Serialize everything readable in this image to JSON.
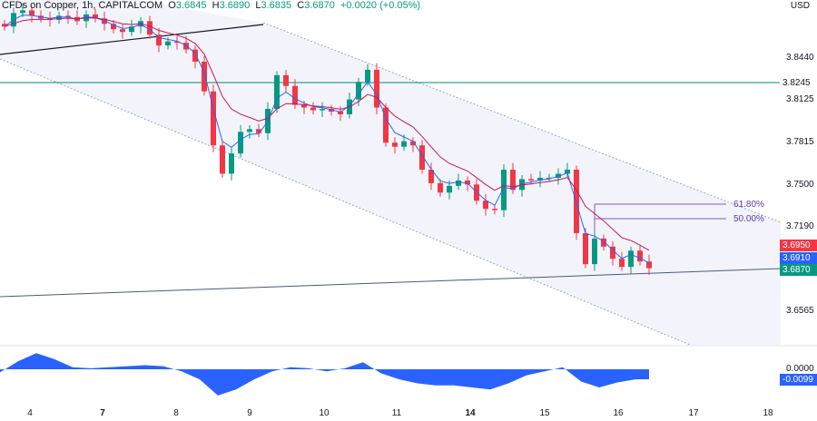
{
  "header": {
    "symbol": "CFDs on Copper",
    "interval": "1h",
    "exchange": "CAPITALCOM",
    "open_label": "O",
    "open": "3.6845",
    "high_label": "H",
    "high": "3.6890",
    "low_label": "L",
    "low": "3.6835",
    "close_label": "C",
    "close": "3.6870",
    "change": "+0.0020 (+0.05%)"
  },
  "currency": "USD",
  "colors": {
    "up": "#089981",
    "down": "#f23645",
    "ma_fast": "#2962ff",
    "ma_slow": "#c2185b",
    "channel": "#f3f4fb",
    "horizontal": "#00897b",
    "oscillator": "#2962ff"
  },
  "price_axis": {
    "ticks": [
      "3.8440",
      "3.8125",
      "3.7815",
      "3.7500",
      "3.7190",
      "3.6565"
    ],
    "tags": [
      {
        "value": "3.8245",
        "color": "#ffffff",
        "text": "#131722"
      },
      {
        "value": "3.6950",
        "color": "#f23645"
      },
      {
        "value": "3.6910",
        "color": "#2962ff"
      },
      {
        "value": "3.6870",
        "color": "#089981"
      }
    ]
  },
  "fib_levels": [
    {
      "label": "61.80%"
    },
    {
      "label": "50.00%"
    }
  ],
  "oscillator_axis": {
    "zero": "0.0000",
    "current": "-0.0099"
  },
  "time_axis": {
    "labels": [
      {
        "t": "4",
        "bold": false
      },
      {
        "t": "7",
        "bold": true
      },
      {
        "t": "8",
        "bold": false
      },
      {
        "t": "9",
        "bold": false
      },
      {
        "t": "10",
        "bold": false
      },
      {
        "t": "11",
        "bold": false
      },
      {
        "t": "14",
        "bold": true
      },
      {
        "t": "15",
        "bold": false
      },
      {
        "t": "16",
        "bold": false
      },
      {
        "t": "17",
        "bold": false
      },
      {
        "t": "18",
        "bold": false
      }
    ]
  },
  "chart_data": {
    "type": "candlestick",
    "closes": [
      3.866,
      3.876,
      3.878,
      3.874,
      3.872,
      3.871,
      3.874,
      3.873,
      3.87,
      3.875,
      3.872,
      3.868,
      3.864,
      3.862,
      3.866,
      3.87,
      3.86,
      3.852,
      3.855,
      3.854,
      3.849,
      3.84,
      3.818,
      3.778,
      3.757,
      3.772,
      3.788,
      3.79,
      3.787,
      3.805,
      3.83,
      3.822,
      3.808,
      3.806,
      3.804,
      3.805,
      3.803,
      3.801,
      3.812,
      3.825,
      3.834,
      3.806,
      3.78,
      3.777,
      3.781,
      3.778,
      3.76,
      3.75,
      3.743,
      3.748,
      3.752,
      3.749,
      3.737,
      3.731,
      3.73,
      3.76,
      3.745,
      3.753,
      3.752,
      3.754,
      3.754,
      3.757,
      3.76,
      3.713,
      3.69,
      3.709,
      3.703,
      3.694,
      3.688,
      3.7,
      3.692,
      3.687
    ],
    "oscillator": [
      -0.003,
      0.008,
      0.016,
      0.01,
      0.002,
      0.001,
      0.002,
      0.003,
      0.004,
      0.003,
      -0.002,
      -0.01,
      -0.026,
      -0.02,
      -0.01,
      -0.002,
      0.002,
      0.001,
      -0.002,
      0.001,
      0.007,
      -0.004,
      -0.01,
      -0.014,
      -0.016,
      -0.016,
      -0.018,
      -0.02,
      -0.014,
      -0.006,
      -0.002,
      0.002,
      -0.012,
      -0.018,
      -0.013,
      -0.01,
      -0.0099
    ],
    "ylim": [
      3.63,
      3.885
    ]
  }
}
